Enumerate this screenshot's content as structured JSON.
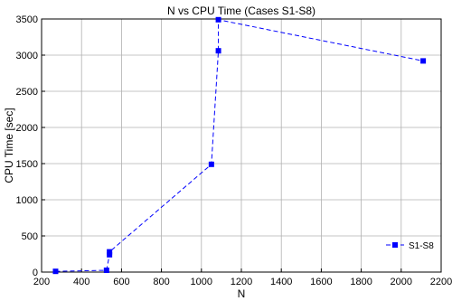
{
  "chart_data": {
    "type": "line",
    "title": "N vs CPU Time (Cases S1-S8)",
    "xlabel": "N",
    "ylabel": "CPU Time [sec]",
    "xlim": [
      200,
      2200
    ],
    "ylim": [
      0,
      3500
    ],
    "xticks": [
      200,
      400,
      600,
      800,
      1000,
      1200,
      1400,
      1600,
      1800,
      2000,
      2200
    ],
    "yticks": [
      0,
      500,
      1000,
      1500,
      2000,
      2500,
      3000,
      3500
    ],
    "grid": true,
    "legend_position": "bottom-right",
    "series": [
      {
        "name": "S1-S8",
        "color": "#0000ff",
        "line_style": "dashed",
        "marker": "square",
        "points": [
          [
            270,
            10
          ],
          [
            525,
            25
          ],
          [
            540,
            240
          ],
          [
            540,
            280
          ],
          [
            1050,
            1490
          ],
          [
            1085,
            3060
          ],
          [
            1085,
            3490
          ],
          [
            2110,
            2920
          ]
        ]
      }
    ]
  }
}
